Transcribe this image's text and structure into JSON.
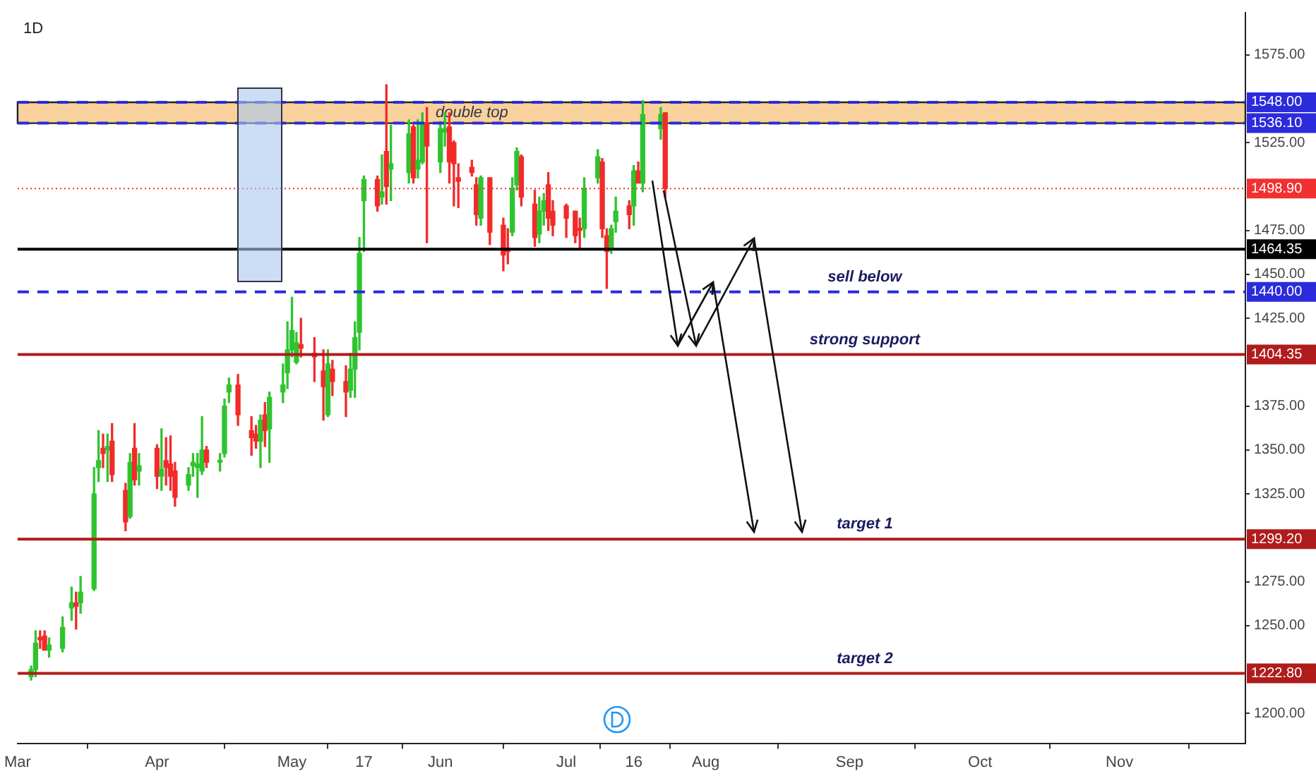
{
  "chart_data": {
    "type": "candlestick",
    "title": "1D",
    "x": [
      "--03-04",
      "--03-05",
      "--03-06",
      "--03-07",
      "--03-08",
      "--03-11",
      "--03-13",
      "--03-14",
      "--03-15",
      "--03-18",
      "--03-19",
      "--03-20",
      "--03-21",
      "--03-22",
      "--03-25",
      "--03-26",
      "--03-27",
      "--03-28",
      "--04-01",
      "--04-02",
      "--04-03",
      "--04-04",
      "--04-05",
      "--04-08",
      "--04-09",
      "--04-10",
      "--04-11",
      "--04-12",
      "--04-15",
      "--04-16",
      "--04-17",
      "--04-19",
      "--04-22",
      "--04-23",
      "--04-24",
      "--04-25",
      "--04-26",
      "--04-29",
      "--04-30",
      "--05-01",
      "--05-02",
      "--05-03",
      "--05-06",
      "--05-08",
      "--05-09",
      "--05-10",
      "--05-13",
      "--05-14",
      "--05-15",
      "--05-16",
      "--05-17",
      "--05-20",
      "--05-21",
      "--05-22",
      "--05-23",
      "--05-27",
      "--05-28",
      "--05-29",
      "--05-30",
      "--05-31",
      "--06-03",
      "--06-04",
      "--06-05",
      "--06-06",
      "--06-07",
      "--06-10",
      "--06-11",
      "--06-12",
      "--06-14",
      "--06-17",
      "--06-18",
      "--06-19",
      "--06-20",
      "--06-21",
      "--06-24",
      "--06-25",
      "--06-26",
      "--06-27",
      "--06-28",
      "--07-01",
      "--07-03",
      "--07-04",
      "--07-05",
      "--07-08",
      "--07-09",
      "--07-10",
      "--07-11",
      "--07-12",
      "--07-15",
      "--07-16",
      "--07-17",
      "--07-18",
      "--07-22",
      "--07-23"
    ],
    "ohlc": [
      [
        1221,
        1227,
        1219,
        1225
      ],
      [
        1225,
        1247,
        1221,
        1240
      ],
      [
        1243,
        1247,
        1237,
        1242
      ],
      [
        1244,
        1247,
        1236,
        1236
      ],
      [
        1236,
        1243,
        1232,
        1239
      ],
      [
        1237,
        1255,
        1235,
        1249
      ],
      [
        1260,
        1272,
        1253,
        1263
      ],
      [
        1263,
        1269,
        1248,
        1261
      ],
      [
        1263,
        1278,
        1257,
        1269
      ],
      [
        1271,
        1340,
        1270,
        1325
      ],
      [
        1340,
        1361,
        1332,
        1344
      ],
      [
        1351,
        1359,
        1340,
        1348
      ],
      [
        1350,
        1359,
        1332,
        1352
      ],
      [
        1355,
        1365,
        1332,
        1336
      ],
      [
        1327,
        1331,
        1304,
        1309
      ],
      [
        1312,
        1348,
        1311,
        1343
      ],
      [
        1351,
        1365,
        1330,
        1333
      ],
      [
        1338,
        1348,
        1330,
        1341
      ],
      [
        1351,
        1353,
        1328,
        1335
      ],
      [
        1335,
        1362,
        1327,
        1339
      ],
      [
        1344,
        1357,
        1330,
        1340
      ],
      [
        1342,
        1358,
        1327,
        1335
      ],
      [
        1338,
        1343,
        1318,
        1323
      ],
      [
        1330,
        1340,
        1327,
        1336
      ],
      [
        1341,
        1348,
        1335,
        1343
      ],
      [
        1340,
        1348,
        1323,
        1342
      ],
      [
        1338,
        1369,
        1336,
        1350
      ],
      [
        1350,
        1352,
        1340,
        1343
      ],
      [
        1343,
        1348,
        1338,
        1344
      ],
      [
        1348,
        1379,
        1346,
        1375
      ],
      [
        1383,
        1391,
        1377,
        1387
      ],
      [
        1387,
        1393,
        1364,
        1370
      ],
      [
        1361,
        1369,
        1347,
        1357
      ],
      [
        1359,
        1364,
        1351,
        1355
      ],
      [
        1355,
        1370,
        1340,
        1367
      ],
      [
        1370,
        1377,
        1352,
        1361
      ],
      [
        1362,
        1383,
        1343,
        1380
      ],
      [
        1383,
        1399,
        1377,
        1387
      ],
      [
        1394,
        1423,
        1385,
        1407
      ],
      [
        1407,
        1437,
        1403,
        1418
      ],
      [
        1400,
        1417,
        1399,
        1411
      ],
      [
        1410,
        1425,
        1403,
        1408
      ],
      [
        1405,
        1414,
        1389,
        1403
      ],
      [
        1395,
        1407,
        1367,
        1386
      ],
      [
        1370,
        1407,
        1369,
        1399
      ],
      [
        1396,
        1401,
        1381,
        1389
      ],
      [
        1389,
        1398,
        1369,
        1383
      ],
      [
        1384,
        1405,
        1380,
        1396
      ],
      [
        1396,
        1423,
        1380,
        1414
      ],
      [
        1417,
        1471,
        1407,
        1462
      ],
      [
        1492,
        1506,
        1463,
        1504
      ],
      [
        1504,
        1506,
        1486,
        1489
      ],
      [
        1494,
        1518,
        1490,
        1497
      ],
      [
        1520,
        1558,
        1490,
        1500
      ],
      [
        1510,
        1535,
        1492,
        1513
      ],
      [
        1508,
        1538,
        1502,
        1530
      ],
      [
        1534,
        1535,
        1502,
        1505
      ],
      [
        1510,
        1538,
        1505,
        1515
      ],
      [
        1514,
        1542,
        1513,
        1536
      ],
      [
        1536,
        1545,
        1468,
        1523
      ],
      [
        1514,
        1537,
        1508,
        1533
      ],
      [
        1531,
        1542,
        1523,
        1533
      ],
      [
        1534,
        1542,
        1502,
        1514
      ],
      [
        1525,
        1526,
        1489,
        1513
      ],
      [
        1505,
        1513,
        1488,
        1503
      ],
      [
        1511,
        1515,
        1506,
        1508
      ],
      [
        1501,
        1505,
        1478,
        1484
      ],
      [
        1482,
        1506,
        1478,
        1505
      ],
      [
        1505,
        1505,
        1467,
        1474
      ],
      [
        1478,
        1482,
        1452,
        1461
      ],
      [
        1465,
        1476,
        1456,
        1463
      ],
      [
        1474,
        1505,
        1472,
        1499
      ],
      [
        1501,
        1522,
        1498,
        1520
      ],
      [
        1517,
        1518,
        1489,
        1494
      ],
      [
        1490,
        1498,
        1466,
        1471
      ],
      [
        1473,
        1494,
        1468,
        1486
      ],
      [
        1486,
        1496,
        1478,
        1492
      ],
      [
        1501,
        1508,
        1475,
        1482
      ],
      [
        1486,
        1492,
        1472,
        1478
      ],
      [
        1489,
        1490,
        1471,
        1482
      ],
      [
        1486,
        1486,
        1468,
        1472
      ],
      [
        1476,
        1482,
        1464,
        1475
      ],
      [
        1476,
        1505,
        1471,
        1499
      ],
      [
        1505,
        1521,
        1502,
        1517
      ],
      [
        1514,
        1516,
        1471,
        1476
      ],
      [
        1472,
        1476,
        1442,
        1463
      ],
      [
        1464,
        1478,
        1462,
        1476
      ],
      [
        1480,
        1494,
        1474,
        1486
      ],
      [
        1489,
        1492,
        1476,
        1484
      ],
      [
        1489,
        1512,
        1478,
        1509
      ],
      [
        1509,
        1514,
        1502,
        1502
      ],
      [
        1502,
        1549,
        1497,
        1541
      ],
      [
        1533,
        1545,
        1527,
        1541
      ],
      [
        1542,
        1542,
        1494,
        1498.9
      ]
    ],
    "xlim": [
      "--03-01",
      "--11-29"
    ],
    "xticks": [
      {
        "value": "--03-01",
        "label": "Mar"
      },
      {
        "value": "--04-01",
        "label": "Apr"
      },
      {
        "value": "--05-01",
        "label": "May"
      },
      {
        "value": "--05-17",
        "label": "17"
      },
      {
        "value": "--06-03",
        "label": "Jun"
      },
      {
        "value": "--07-01",
        "label": "Jul"
      },
      {
        "value": "--07-16",
        "label": "16"
      },
      {
        "value": "--08-01",
        "label": "Aug"
      },
      {
        "value": "--09-02",
        "label": "Sep"
      },
      {
        "value": "--10-01",
        "label": "Oct"
      },
      {
        "value": "--11-01",
        "label": "Nov"
      }
    ],
    "ylim": [
      1183,
      1599
    ],
    "yticks": [
      {
        "value": 1200,
        "label": "1200.00"
      },
      {
        "value": 1250,
        "label": "1250.00"
      },
      {
        "value": 1275,
        "label": "1275.00"
      },
      {
        "value": 1325,
        "label": "1325.00"
      },
      {
        "value": 1350,
        "label": "1350.00"
      },
      {
        "value": 1375,
        "label": "1375.00"
      },
      {
        "value": 1425,
        "label": "1425.00"
      },
      {
        "value": 1450,
        "label": "1450.00"
      },
      {
        "value": 1475,
        "label": "1475.00"
      },
      {
        "value": 1525,
        "label": "1525.00"
      },
      {
        "value": 1575,
        "label": "1575.00"
      }
    ],
    "ref_lines": [
      {
        "axis": "y",
        "value": 1548,
        "label": "1548.00",
        "color": "#2b2bdc",
        "line_style": "dashed"
      },
      {
        "axis": "y",
        "value": 1536.1,
        "label": "1536.10",
        "color": "#2b2bdc",
        "line_style": "dashed"
      },
      {
        "axis": "y",
        "value": 1498.9,
        "label": "1498.90",
        "color": "#f23030",
        "line_style": "dotted"
      },
      {
        "axis": "y",
        "value": 1464.35,
        "label": "1464.35",
        "color": "#000000",
        "line_style": "solid"
      },
      {
        "axis": "y",
        "value": 1440,
        "label": "1440.00",
        "color": "#2b2bdc",
        "line_style": "dashed"
      },
      {
        "axis": "y",
        "value": 1404.35,
        "label": "1404.35",
        "color": "#b01c1c",
        "line_style": "solid"
      },
      {
        "axis": "y",
        "value": 1299.2,
        "label": "1299.20",
        "color": "#b01c1c",
        "line_style": "solid"
      },
      {
        "axis": "y",
        "value": 1222.8,
        "label": "1222.80",
        "color": "#b01c1c",
        "line_style": "solid"
      }
    ],
    "annotations": [
      {
        "text": "sell below",
        "y": 1440
      },
      {
        "text": "strong support",
        "y": 1404.35
      },
      {
        "text": "target 1",
        "y": 1299.2
      },
      {
        "text": "target 2",
        "y": 1222.8
      }
    ],
    "bands": [
      {
        "axis": "y",
        "from": 1536.1,
        "to": 1548,
        "label": "double top",
        "color": "#f7c98b"
      }
    ]
  }
}
